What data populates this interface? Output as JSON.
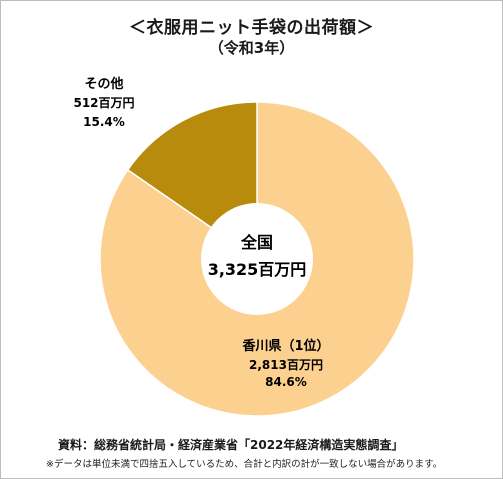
{
  "chart_data": {
    "type": "pie",
    "title": "＜衣服用ニット手袋の出荷額＞",
    "subtitle": "（令和3年）",
    "center_label": {
      "line1": "全国",
      "line2": "3,325百万円"
    },
    "slices": [
      {
        "name": "香川県（1位）",
        "value_text": "2,813百万円",
        "value": 2813,
        "percent_text": "84.6%",
        "percent": 84.6,
        "color": "#fcd08f"
      },
      {
        "name": "その他",
        "value_text": "512百万円",
        "value": 512,
        "percent_text": "15.4%",
        "percent": 15.4,
        "color": "#b88b0c"
      }
    ],
    "source": "資料：総務省統計局・経済産業省「2022年経済構造実態調査」",
    "note": "※データは単位未満で四捨五入しているため、合計と内訳の計が一致しない場合があります。"
  }
}
